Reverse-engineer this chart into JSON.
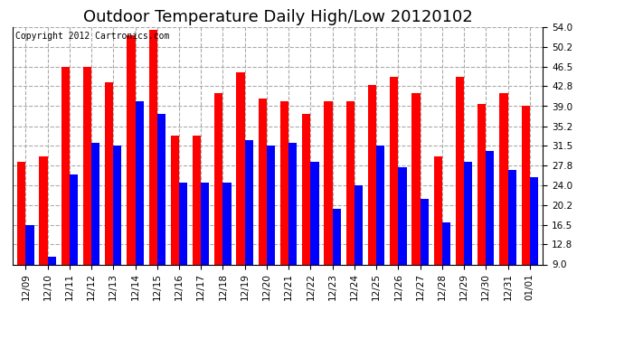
{
  "title": "Outdoor Temperature Daily High/Low 20120102",
  "copyright": "Copyright 2012 Cartronics.com",
  "dates": [
    "12/09",
    "12/10",
    "12/11",
    "12/12",
    "12/13",
    "12/14",
    "12/15",
    "12/16",
    "12/17",
    "12/18",
    "12/19",
    "12/20",
    "12/21",
    "12/22",
    "12/23",
    "12/24",
    "12/25",
    "12/26",
    "12/27",
    "12/28",
    "12/29",
    "12/30",
    "12/31",
    "01/01"
  ],
  "highs": [
    28.5,
    29.5,
    46.5,
    46.5,
    43.5,
    52.5,
    53.5,
    33.5,
    33.5,
    41.5,
    45.5,
    40.5,
    40.0,
    37.5,
    40.0,
    40.0,
    43.0,
    44.5,
    41.5,
    29.5,
    44.5,
    39.5,
    41.5,
    39.0
  ],
  "lows": [
    16.5,
    10.5,
    26.0,
    32.0,
    31.5,
    40.0,
    37.5,
    24.5,
    24.5,
    24.5,
    32.5,
    31.5,
    32.0,
    28.5,
    19.5,
    24.0,
    31.5,
    27.5,
    21.5,
    17.0,
    28.5,
    30.5,
    27.0,
    25.5
  ],
  "high_color": "#ff0000",
  "low_color": "#0000ff",
  "bg_color": "#ffffff",
  "grid_color": "#aaaaaa",
  "ylim_min": 9.0,
  "ylim_max": 54.0,
  "yticks": [
    9.0,
    12.8,
    16.5,
    20.2,
    24.0,
    27.8,
    31.5,
    35.2,
    39.0,
    42.8,
    46.5,
    50.2,
    54.0
  ],
  "bar_width": 0.38,
  "title_fontsize": 13,
  "tick_fontsize": 7.5,
  "copyright_fontsize": 7
}
